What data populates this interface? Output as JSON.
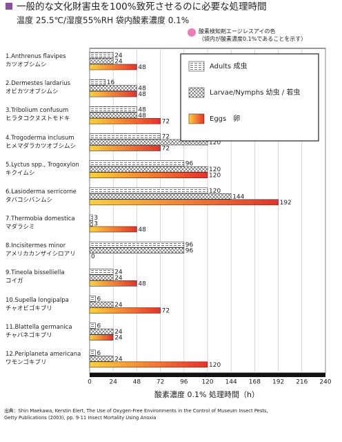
{
  "chart_data": {
    "type": "hbar",
    "title": "一般的な文化財害虫を100%致死させるのに必要な処理時間",
    "subtitle": "温度 25.5℃/湿度55%RH  袋内酸素濃度 0.1%",
    "annotation": "酸素検知剤エージレスアイの色\n（袋内が酸素濃度0.1%であることを示す）",
    "x_label": "酸素濃度 0.1% 処理時間（h）",
    "source": "出典：Shin Maekawa, Kerstin Elert, The Use of Oxygen-Free Environments in the Control of Museum Insect Pests,\nGetty Publications (2003), pp. 9-11  Insect Mortality Using Anoxia",
    "categories": [
      "1.Anthrenus flavipes\nカツオブシムシ",
      "2.Dermestes lardarius\nオビカツオブシムシ",
      "3.Tribolium confusum\nヒラタコクヌストモドキ",
      "4.Trogoderma inclusum\nヒメマダラカツオブシムシ",
      "5.Lyctus spp., Trogoxylon\nキクイムシ",
      "6.Lasioderma serricorne\nタバコシバンムシ",
      "7.Thermobia domestica\nマダラシミ",
      "8.Incisitermes minor\nアメリカカンザイシロアリ",
      "9.Tineola bisselliella\nコイガ",
      "10.Supella longipalpa\nチャオビゴキブリ",
      "11.Blattella germanica\nチャバネゴキブリ",
      "12.Periplaneta americana\nワモンゴキブリ"
    ],
    "series": [
      {
        "name": "Adults 成虫",
        "color": "#ffffff",
        "pattern": "dashes",
        "values": [
          24,
          16,
          48,
          72,
          96,
          120,
          3,
          96,
          24,
          6,
          6,
          6
        ]
      },
      {
        "name": "Larvae/Nymphs 幼虫 / 若虫",
        "color": "#ffffff",
        "pattern": "crosshatch",
        "values": [
          24,
          48,
          48,
          120,
          120,
          144,
          3,
          96,
          24,
          24,
          24,
          24
        ]
      },
      {
        "name": "Eggs　卵",
        "color": "#e8302a",
        "pattern": "gradient",
        "values": [
          48,
          48,
          72,
          72,
          120,
          192,
          48,
          0,
          48,
          72,
          24,
          120
        ]
      }
    ],
    "xlim": [
      0,
      240
    ],
    "xticks": [
      0,
      24,
      48,
      72,
      96,
      120,
      144,
      168,
      192,
      216,
      240
    ],
    "grid": true
  }
}
